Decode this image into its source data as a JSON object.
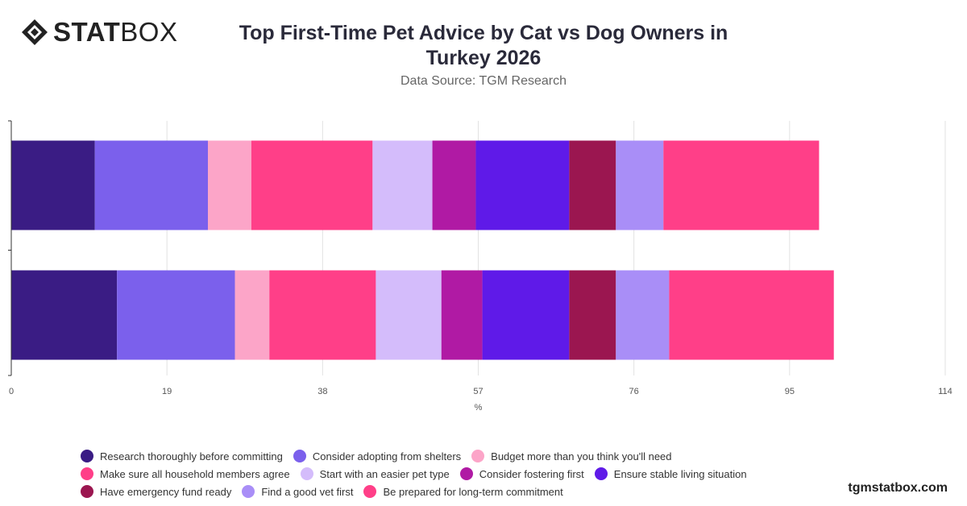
{
  "brand": {
    "logo_bold": "STAT",
    "logo_thin": "BOX",
    "watermark": "tgmstatbox.com"
  },
  "chart_data": {
    "type": "bar",
    "orientation": "horizontal",
    "stacked": true,
    "title": "Top First-Time Pet Advice by Cat vs Dog Owners in Turkey 2026",
    "subtitle": "Data Source: TGM Research",
    "xlabel": "%",
    "ylabel": "",
    "xlim": [
      0,
      114
    ],
    "xticks": [
      0,
      19,
      38,
      57,
      76,
      95,
      114
    ],
    "grid": true,
    "legend_position": "bottom",
    "categories": [
      "",
      ""
    ],
    "series": [
      {
        "name": "Research thoroughly before committing",
        "color": "#3a1c84",
        "values": [
          10.2,
          12.9
        ]
      },
      {
        "name": "Consider adopting from shelters",
        "color": "#7b60ec",
        "values": [
          13.8,
          14.4
        ]
      },
      {
        "name": "Budget more than you think you'll need",
        "color": "#fca5c8",
        "values": [
          5.3,
          4.2
        ]
      },
      {
        "name": "Make sure all household members agree",
        "color": "#ff3f88",
        "values": [
          14.8,
          13.0
        ]
      },
      {
        "name": "Start with an easier pet type",
        "color": "#d4bcfb",
        "values": [
          7.3,
          8.0
        ]
      },
      {
        "name": "Consider fostering first",
        "color": "#b01aa4",
        "values": [
          5.3,
          5.0
        ]
      },
      {
        "name": "Ensure stable living situation",
        "color": "#5f1ae8",
        "values": [
          11.4,
          10.6
        ]
      },
      {
        "name": "Have emergency fund ready",
        "color": "#9b1650",
        "values": [
          5.7,
          5.7
        ]
      },
      {
        "name": "Find a good vet first",
        "color": "#a98ef7",
        "values": [
          5.8,
          6.5
        ]
      },
      {
        "name": "Be prepared for long-term commitment",
        "color": "#ff3f88",
        "values": [
          19.0,
          20.1
        ]
      }
    ]
  }
}
